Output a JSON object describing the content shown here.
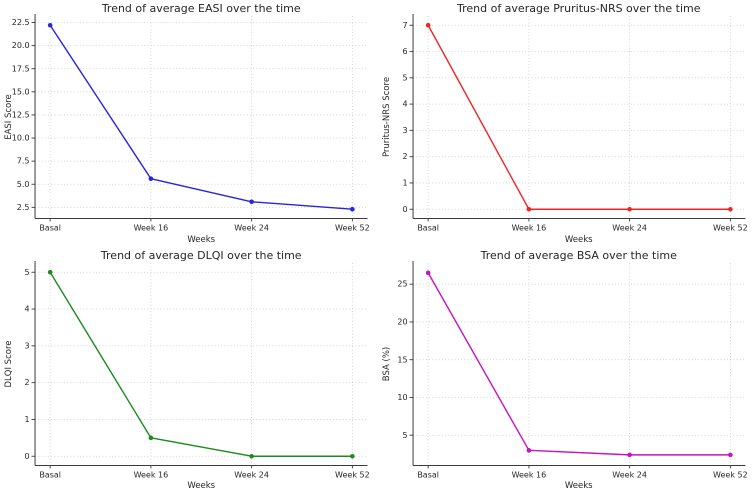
{
  "page": {
    "background": "#ffffff",
    "x_categories": [
      "Basal",
      "Week 16",
      "Week 24",
      "Week 52"
    ]
  },
  "chart_data": [
    {
      "id": "easi",
      "type": "line",
      "title": "Trend of average EASI over the time",
      "xlabel": "Weeks",
      "ylabel": "EASI Score",
      "categories": [
        "Basal",
        "Week 16",
        "Week 24",
        "Week 52"
      ],
      "values": [
        22.2,
        5.6,
        3.1,
        2.3
      ],
      "yticks": [
        2.5,
        5.0,
        7.5,
        10.0,
        12.5,
        15.0,
        17.5,
        20.0,
        22.5
      ],
      "ytick_labels": [
        "2.5",
        "5.0",
        "7.5",
        "10.0",
        "12.5",
        "15.0",
        "17.5",
        "20.0",
        "22.5"
      ],
      "ylim": [
        1.3,
        23.2
      ],
      "color": "#2626dd",
      "marker": "circle",
      "grid": true,
      "legend": "none"
    },
    {
      "id": "pruritus-nrs",
      "type": "line",
      "title": "Trend of average Pruritus-NRS over the time",
      "xlabel": "Weeks",
      "ylabel": "Pruritus-NRS Score",
      "categories": [
        "Basal",
        "Week 16",
        "Week 24",
        "Week 52"
      ],
      "values": [
        7,
        0,
        0,
        0
      ],
      "yticks": [
        0,
        1,
        2,
        3,
        4,
        5,
        6,
        7
      ],
      "ytick_labels": [
        "0",
        "1",
        "2",
        "3",
        "4",
        "5",
        "6",
        "7"
      ],
      "ylim": [
        -0.35,
        7.35
      ],
      "color": "#ee2525",
      "marker": "circle",
      "grid": true,
      "legend": "none"
    },
    {
      "id": "dlqi",
      "type": "line",
      "title": "Trend of average DLQI over the time",
      "xlabel": "Weeks",
      "ylabel": "DLQI Score",
      "categories": [
        "Basal",
        "Week 16",
        "Week 24",
        "Week 52"
      ],
      "values": [
        5,
        0.5,
        0,
        0
      ],
      "yticks": [
        0,
        1,
        2,
        3,
        4,
        5
      ],
      "ytick_labels": [
        "0",
        "1",
        "2",
        "3",
        "4",
        "5"
      ],
      "ylim": [
        -0.25,
        5.25
      ],
      "color": "#1d8a1d",
      "marker": "circle",
      "grid": true,
      "legend": "none"
    },
    {
      "id": "bsa",
      "type": "line",
      "title": "Trend of average BSA over the time",
      "xlabel": "Weeks",
      "ylabel": "BSA (%)",
      "categories": [
        "Basal",
        "Week 16",
        "Week 24",
        "Week 52"
      ],
      "values": [
        26.5,
        3.0,
        2.4,
        2.4
      ],
      "yticks": [
        5,
        10,
        15,
        20,
        25
      ],
      "ytick_labels": [
        "5",
        "10",
        "15",
        "20",
        "25"
      ],
      "ylim": [
        1.0,
        27.8
      ],
      "color": "#c414c4",
      "marker": "circle",
      "grid": true,
      "legend": "none"
    }
  ]
}
